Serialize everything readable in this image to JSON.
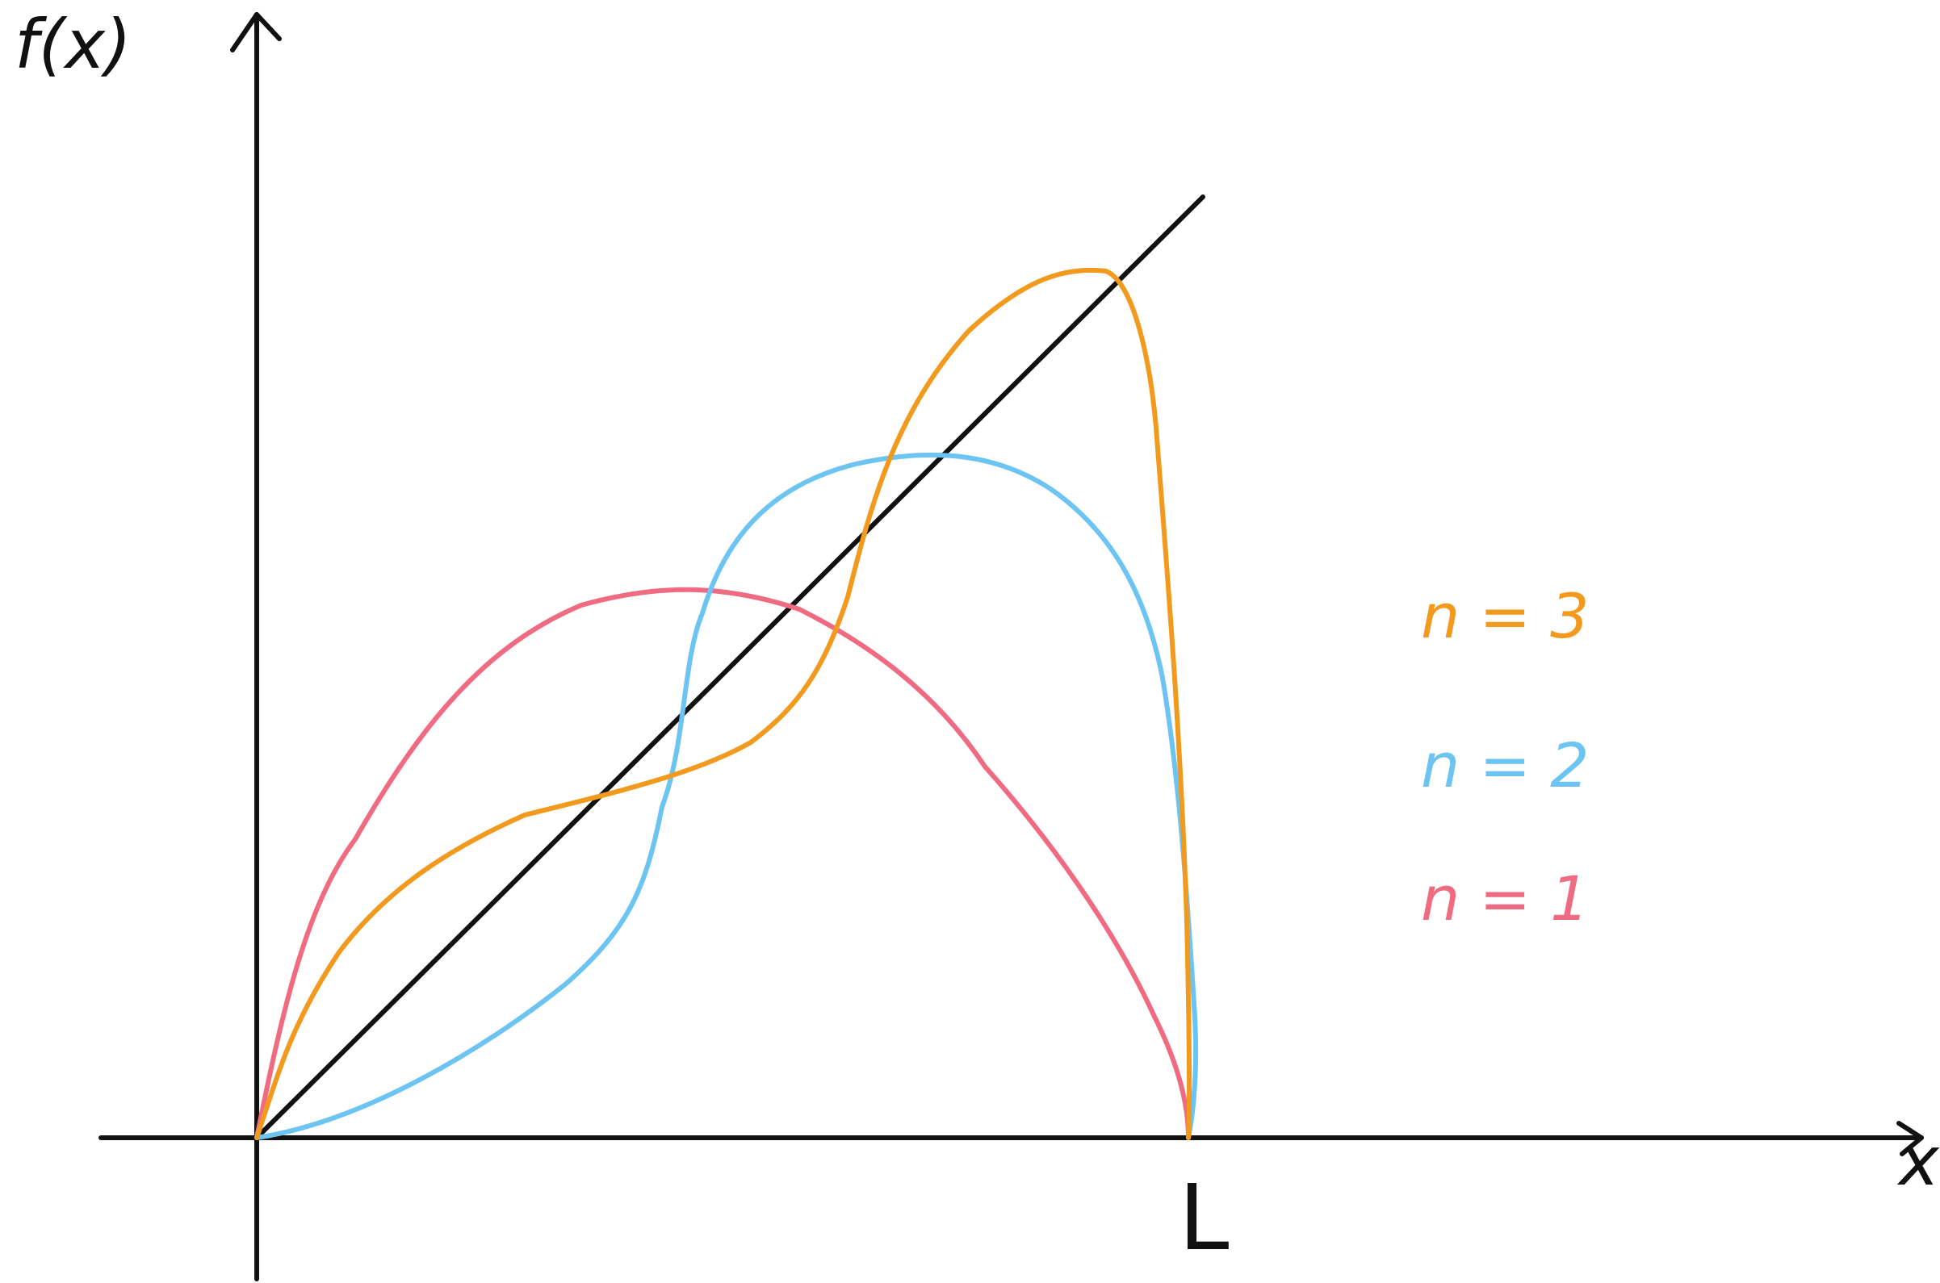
{
  "diagram": {
    "y_axis_label": "f(x)",
    "x_axis_label": "x",
    "x_tick_label": "L",
    "colors": {
      "axes": "#111111",
      "line": "#111111",
      "n1": "#F06B82",
      "n2": "#6CC4F2",
      "n3": "#F29A1D"
    },
    "legend": [
      {
        "text": "n = 3",
        "color": "#F29A1D"
      },
      {
        "text": "n = 2",
        "color": "#6CC4F2"
      },
      {
        "text": "n = 1",
        "color": "#F06B82"
      }
    ]
  }
}
